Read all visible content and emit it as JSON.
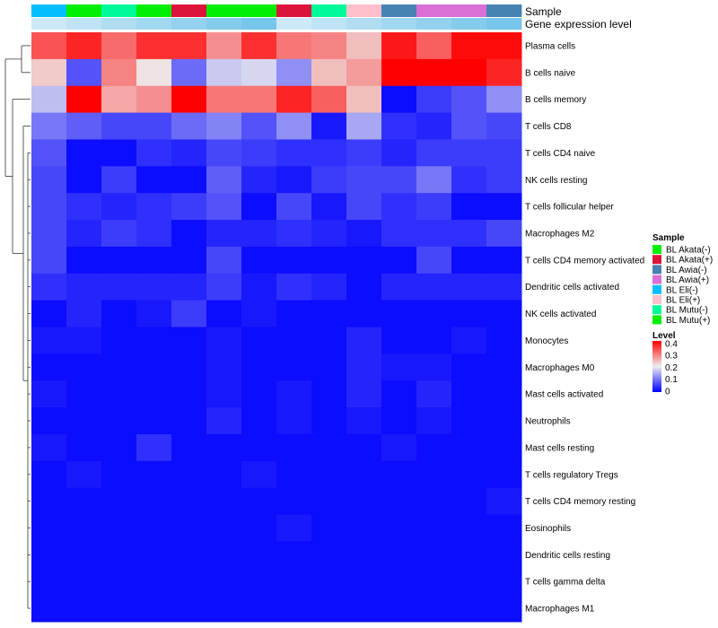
{
  "chart_data": {
    "type": "heatmap",
    "title": "",
    "annotation_rows": [
      "Sample",
      "Gene expression level"
    ],
    "columns": [
      {
        "sample": "BL Eli(-)"
      },
      {
        "sample": "BL Mutu(+)"
      },
      {
        "sample": "BL Mutu(-)"
      },
      {
        "sample": "BL Mutu(+)"
      },
      {
        "sample": "BL Akata(+)"
      },
      {
        "sample": "BL Akata(-)"
      },
      {
        "sample": "BL Mutu(+)"
      },
      {
        "sample": "BL Akata(+)"
      },
      {
        "sample": "BL Mutu(-)"
      },
      {
        "sample": "BL Eli(+)"
      },
      {
        "sample": "BL Awia(-)"
      },
      {
        "sample": "BL Awia(+)"
      },
      {
        "sample": "BL Awia(+)"
      },
      {
        "sample": "BL Awia(-)"
      }
    ],
    "rows": [
      "Plasma cells",
      "B cells naive",
      "B cells memory",
      "T cells CD8",
      "T cells CD4 naive",
      "NK cells resting",
      "T cells follicular helper",
      "Macrophages M2",
      "T cells CD4 memory activated",
      "Dendritic cells activated",
      "NK cells activated",
      "Monocytes",
      "Macrophages M0",
      "Mast cells activated",
      "Neutrophils",
      "Mast cells resting",
      "T cells regulatory  Tregs",
      "T cells CD4 memory resting",
      "Eosinophils",
      "Dendritic cells resting",
      "T cells gamma delta",
      "Macrophages M1"
    ],
    "values": [
      [
        0.33,
        0.37,
        0.31,
        0.36,
        0.36,
        0.28,
        0.36,
        0.3,
        0.29,
        0.24,
        0.38,
        0.32,
        0.39,
        0.39
      ],
      [
        0.23,
        0.07,
        0.29,
        0.21,
        0.09,
        0.17,
        0.18,
        0.12,
        0.24,
        0.27,
        0.4,
        0.4,
        0.4,
        0.37
      ],
      [
        0.16,
        0.4,
        0.26,
        0.28,
        0.4,
        0.3,
        0.3,
        0.37,
        0.32,
        0.24,
        0.01,
        0.05,
        0.07,
        0.12
      ],
      [
        0.1,
        0.08,
        0.06,
        0.06,
        0.09,
        0.11,
        0.07,
        0.12,
        0.02,
        0.14,
        0.04,
        0.03,
        0.07,
        0.06
      ],
      [
        0.07,
        0.01,
        0.01,
        0.04,
        0.03,
        0.06,
        0.05,
        0.04,
        0.04,
        0.05,
        0.03,
        0.05,
        0.05,
        0.05
      ],
      [
        0.06,
        0.01,
        0.05,
        0.01,
        0.01,
        0.08,
        0.03,
        0.02,
        0.05,
        0.06,
        0.06,
        0.1,
        0.04,
        0.05
      ],
      [
        0.06,
        0.04,
        0.03,
        0.04,
        0.05,
        0.07,
        0.01,
        0.06,
        0.02,
        0.06,
        0.04,
        0.05,
        0.01,
        0.01
      ],
      [
        0.06,
        0.03,
        0.05,
        0.04,
        0.01,
        0.03,
        0.03,
        0.04,
        0.03,
        0.02,
        0.04,
        0.04,
        0.04,
        0.06
      ],
      [
        0.06,
        0.01,
        0.01,
        0.01,
        0.01,
        0.06,
        0.01,
        0.01,
        0.01,
        0.01,
        0.01,
        0.06,
        0.01,
        0.01
      ],
      [
        0.04,
        0.03,
        0.03,
        0.03,
        0.03,
        0.05,
        0.02,
        0.04,
        0.03,
        0.01,
        0.03,
        0.03,
        0.03,
        0.03
      ],
      [
        0.01,
        0.03,
        0.01,
        0.02,
        0.05,
        0.01,
        0.02,
        0.01,
        0.01,
        0.01,
        0.01,
        0.01,
        0.01,
        0.01
      ],
      [
        0.02,
        0.02,
        0.01,
        0.01,
        0.01,
        0.02,
        0.01,
        0.01,
        0.01,
        0.03,
        0.01,
        0.01,
        0.02,
        0.01
      ],
      [
        0.01,
        0.01,
        0.01,
        0.01,
        0.01,
        0.02,
        0.01,
        0.01,
        0.01,
        0.03,
        0.02,
        0.02,
        0.01,
        0.01
      ],
      [
        0.02,
        0.01,
        0.01,
        0.01,
        0.01,
        0.02,
        0.01,
        0.02,
        0.01,
        0.03,
        0.01,
        0.03,
        0.01,
        0.01
      ],
      [
        0.01,
        0.01,
        0.01,
        0.01,
        0.01,
        0.03,
        0.01,
        0.02,
        0.01,
        0.02,
        0.01,
        0.02,
        0.01,
        0.01
      ],
      [
        0.02,
        0.01,
        0.01,
        0.04,
        0.01,
        0.01,
        0.01,
        0.01,
        0.01,
        0.01,
        0.02,
        0.01,
        0.01,
        0.01
      ],
      [
        0.01,
        0.02,
        0.01,
        0.01,
        0.01,
        0.01,
        0.02,
        0.01,
        0.01,
        0.01,
        0.01,
        0.01,
        0.01,
        0.01
      ],
      [
        0.01,
        0.01,
        0.01,
        0.01,
        0.01,
        0.01,
        0.01,
        0.01,
        0.01,
        0.01,
        0.01,
        0.01,
        0.01,
        0.02
      ],
      [
        0.01,
        0.01,
        0.01,
        0.01,
        0.01,
        0.01,
        0.01,
        0.02,
        0.01,
        0.01,
        0.01,
        0.01,
        0.01,
        0.01
      ],
      [
        0.01,
        0.01,
        0.01,
        0.01,
        0.01,
        0.01,
        0.01,
        0.01,
        0.01,
        0.01,
        0.01,
        0.01,
        0.01,
        0.01
      ],
      [
        0.01,
        0.01,
        0.01,
        0.01,
        0.01,
        0.01,
        0.01,
        0.01,
        0.01,
        0.01,
        0.01,
        0.01,
        0.01,
        0.01
      ],
      [
        0.01,
        0.01,
        0.01,
        0.01,
        0.01,
        0.01,
        0.01,
        0.01,
        0.01,
        0.01,
        0.01,
        0.01,
        0.01,
        0.01
      ]
    ],
    "color_scale": {
      "min": 0,
      "mid": 0.2,
      "max": 0.4,
      "low_color": "#0000ff",
      "mid_color": "#eeeeee",
      "high_color": "#ff0000"
    },
    "expression_level_colors": [
      "#cde9f6",
      "#bfe3f4",
      "#b0ddf2",
      "#a2d7f0",
      "#93d1ee",
      "#85cbec",
      "#77c5ea"
    ],
    "legend": {
      "sample_title": "Sample",
      "sample_entries": [
        {
          "label": "BL Akata(-)",
          "color": "#00ee00"
        },
        {
          "label": "BL Akata(+)",
          "color": "#dc143c"
        },
        {
          "label": "BL Awia(-)",
          "color": "#4682b4"
        },
        {
          "label": "BL Awia(+)",
          "color": "#da70d6"
        },
        {
          "label": "BL Eli(-)",
          "color": "#00bfff"
        },
        {
          "label": "BL Eli(+)",
          "color": "#ffc0cb"
        },
        {
          "label": "BL Mutu(-)",
          "color": "#00fa9a"
        },
        {
          "label": "BL Mutu(+)",
          "color": "#00ee00"
        }
      ],
      "level_title": "Level",
      "level_ticks": [
        "0.4",
        "0.3",
        "0.2",
        "0.1",
        "0"
      ],
      "placement": "right"
    },
    "row_dendrogram": true,
    "column_dendrogram": false
  }
}
